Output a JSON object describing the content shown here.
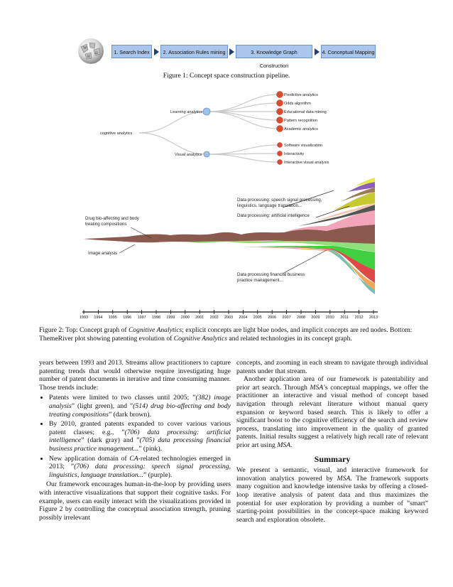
{
  "figure1": {
    "steps": [
      "1. Search Index",
      "2. Association Rules mining",
      "3. Knowledge Graph Construction",
      "4. Conceptual Mapping"
    ],
    "caption": "Figure 1: Concept space construction pipeline."
  },
  "figure2": {
    "graph": {
      "root": "cognitive analytics",
      "explicit_nodes": [
        "Learning analytics",
        "Visual analytics"
      ],
      "implicit_nodes_learning": [
        "Predictive analytics",
        "Odds algorithm",
        "Educational data mining",
        "Pattern recognition",
        "Academic analytics"
      ],
      "implicit_nodes_visual": [
        "Software visualization",
        "Interactivity",
        "Interactive visual analysis"
      ]
    },
    "river": {
      "annotations": {
        "speech": "Data processing: speech signal processing, linguistics, language translation...",
        "ai": "Data processing: artificial intelligence",
        "drug": "Drug bio-affecting and body treating compositions",
        "image": "Image analysis",
        "business": "Data processing financial business practice management..."
      },
      "years": [
        "1993",
        "1994",
        "1995",
        "1996",
        "1997",
        "1998",
        "1999",
        "2000",
        "2001",
        "2002",
        "2003",
        "2004",
        "2005",
        "2006",
        "2007",
        "2008",
        "2009",
        "2010",
        "2011",
        "2012",
        "2013"
      ]
    },
    "caption_a": "Figure 2: Top: Concept graph of ",
    "caption_ca": "Cognitive Analytics",
    "caption_b": "; explicit concepts are light blue nodes, and implicit concepts are red nodes. Bottom: ThemeRiver plot showing patenting evolution of ",
    "caption_ca2": "Cognitive Analytics",
    "caption_c": " and related technologies in its concept graph."
  },
  "left_column": {
    "intro": "years between 1993 and 2013. Streams allow practitioners to capture patenting trends that would otherwise require investigating huge number of patent documents in iterative and time consuming manner. Those trends include:",
    "bullet1_a": "Patents were limited to two classes until 2005; ”",
    "bullet1_b": "(382) image analysis",
    "bullet1_c": "” (light green), and ”",
    "bullet1_d": "(514) drug bio-affecting and body treating compositions",
    "bullet1_e": "” (dark brown).",
    "bullet2_a": "By 2010, granted patents expanded to cover various various patent classes; e.g., ”",
    "bullet2_b": "(706) data processing: artificial intelligence",
    "bullet2_c": "” (dark gray) and ”",
    "bullet2_d": "(705) data processing financial business practice management...",
    "bullet2_e": "” (pink).",
    "bullet3_a": "New application domain of ",
    "bullet3_b": "CA",
    "bullet3_c": "-related technologies emerged in 2013; ”",
    "bullet3_d": "(706) data processing: speech signal processing, linguistics, language translation...",
    "bullet3_e": "” (purple).",
    "para2": "Our framework encourages human-in-the-loop by providing users with interactive visualizations that support their cognitive tasks. For example, users can easily interact with the visualizations provided in Figure 2 by controlling the conceptual association strength, pruning possibly irrelevant"
  },
  "right_column": {
    "para1": "concepts, and zooming in each stream to navigate through individual patents under that stream.",
    "para2_a": "Another application area of our framework is patentability and prior art search. Through ",
    "para2_msa": "MSA",
    "para2_b": "’s conceptual mappings, we offer the practitioner an interactive and visual method of concept based navigation through relevant literature without manual query expansion or keyword based search. This is likely to offer a significant boost to the cognitive efficiency of the search and review process, translating into improvement in the quality of granted patents. Initial results suggest a relatively high recall rate of relevant prior art using ",
    "para2_msa2": "MSA",
    "para2_c": ".",
    "summary_heading": "Summary",
    "summary_a": "We present a semantic, visual, and interactive framework for innovation analytics powered by ",
    "summary_msa": "MSA",
    "summary_b": ". The framework supports many cognition and knowledge intensive tasks by offering a closed-loop iterative analysis of patent data and thus maximizes the potential for user exploration by providing a number of ”smart” starting-point possibilities in the concept-space making keyword search and exploration obsolete."
  },
  "colors": {
    "pipeline_box": "#a9c6ec",
    "explicit_node": "#9ec3ea",
    "implicit_node": "#e04a2a",
    "drug_stream": "#8b5a4e",
    "image_stream": "#8fe07a",
    "ai_stream": "#555555",
    "business_stream": "#f2a4b8",
    "speech_stream": "#8e5fb8"
  }
}
